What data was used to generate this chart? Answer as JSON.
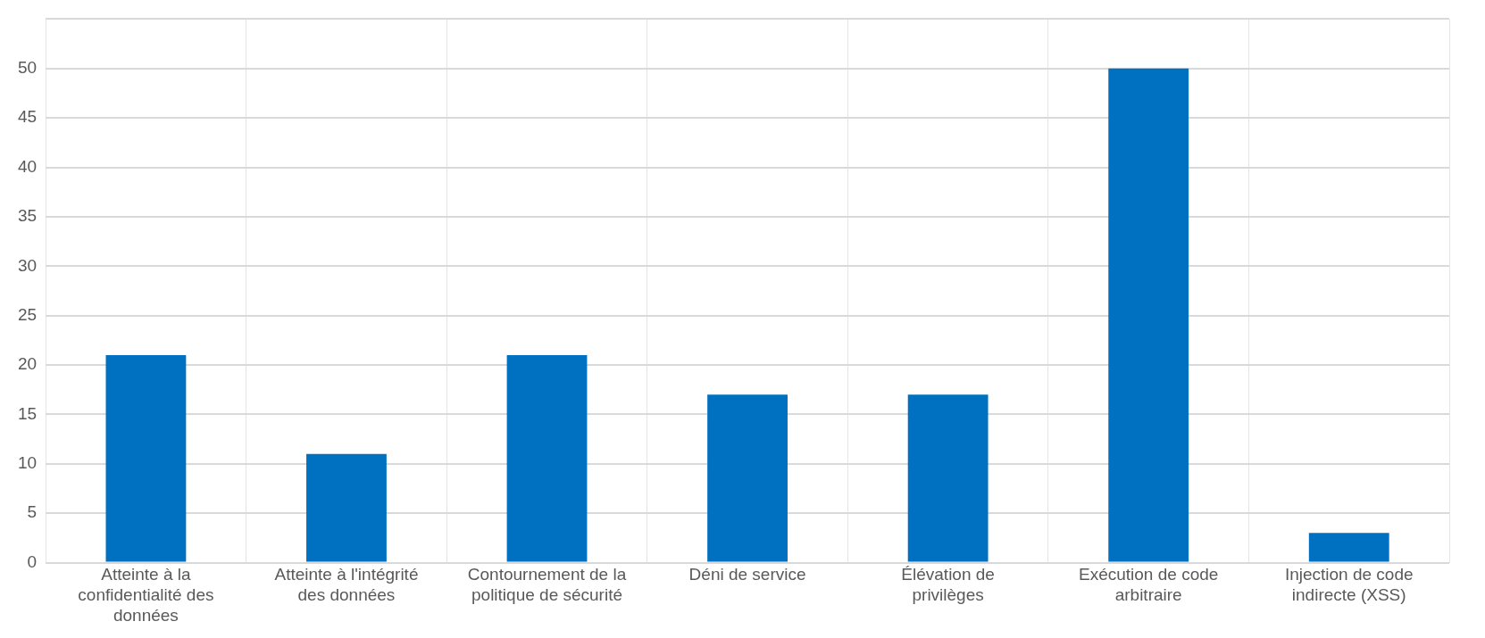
{
  "chart_data": {
    "type": "bar",
    "categories": [
      "Atteinte à la confidentialité des données",
      "Atteinte à l'intégrité des données",
      "Contournement de la politique de sécurité",
      "Déni de service",
      "Élévation de privilèges",
      "Exécution de code arbitraire",
      "Injection de code indirecte (XSS)"
    ],
    "values": [
      21,
      11,
      21,
      17,
      17,
      50,
      3
    ],
    "color": "#0070c0",
    "ylim": [
      0,
      55
    ],
    "yticks": [
      0,
      5,
      10,
      15,
      20,
      25,
      30,
      35,
      40,
      45,
      50,
      {
        "value": 55,
        "label": null
      }
    ],
    "grid": true
  }
}
